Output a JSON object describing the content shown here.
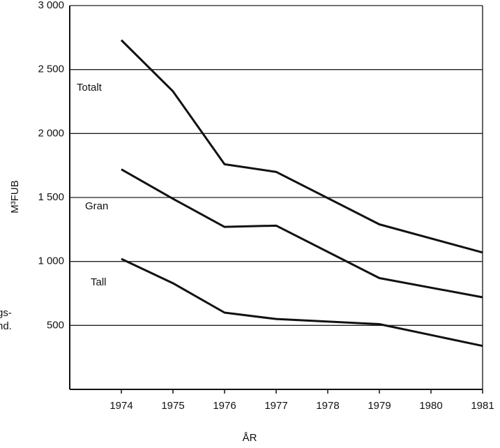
{
  "chart_data": {
    "type": "line",
    "x": [
      1974,
      1975,
      1976,
      1977,
      1979,
      1981
    ],
    "series": [
      {
        "name": "Totalt",
        "color": "#111111",
        "values": [
          2730,
          2330,
          1760,
          1700,
          1290,
          1070
        ]
      },
      {
        "name": "Gran",
        "color": "#111111",
        "values": [
          1720,
          1490,
          1270,
          1280,
          870,
          720
        ]
      },
      {
        "name": "Tall",
        "color": "#111111",
        "values": [
          1020,
          830,
          600,
          550,
          510,
          340
        ]
      }
    ],
    "y_label": "M³FUB",
    "x_label": "ÅR",
    "annotations": [
      "gs-",
      "nd."
    ],
    "xlim": [
      1973,
      1981
    ],
    "xticks": [
      1974,
      1975,
      1976,
      1977,
      1978,
      1979,
      1980,
      1981
    ],
    "ylim": [
      0,
      3000
    ],
    "yticks": [
      500,
      {
        "value": 1000,
        "label": "1 000"
      },
      {
        "value": 1500,
        "label": "1 500"
      },
      {
        "value": 2000,
        "label": "2 000"
      },
      {
        "value": 2500,
        "label": "2 500"
      },
      {
        "value": 3000,
        "label": "3 000"
      }
    ],
    "grid": true
  }
}
